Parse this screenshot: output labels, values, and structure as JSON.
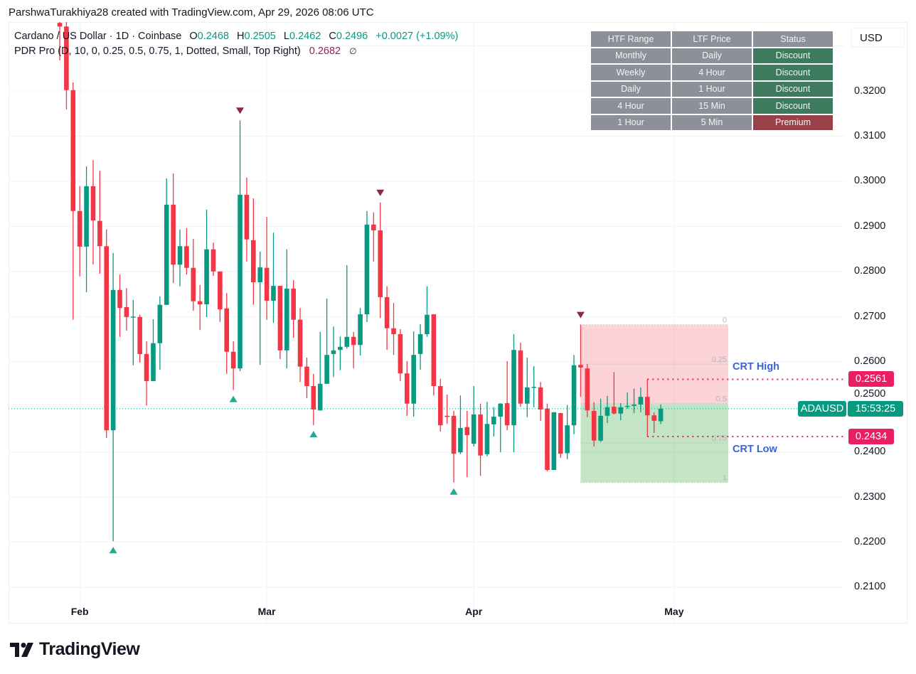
{
  "watermark": "ParshwaTurakhiya28 created with TradingView.com, Apr 29, 2026 08:06 UTC",
  "legend": {
    "symbol": "Cardano / US Dollar · 1D · Coinbase",
    "o_label": "O",
    "o_value": "0.2468",
    "h_label": "H",
    "h_value": "0.2505",
    "l_label": "L",
    "l_value": "0.2462",
    "c_label": "C",
    "c_value": "0.2496",
    "change": "+0.0027 (+1.09%)",
    "indicator": "PDR Pro (D, 10, 0, 0.25, 0.5, 0.75, 1, Dotted, Small, Top Right)",
    "indicator_value": "0.2682",
    "indicator_icon": "∅"
  },
  "currency_button": "USD",
  "table": {
    "headers": [
      "HTF Range",
      "LTF Price",
      "Status"
    ],
    "rows": [
      [
        "Monthly",
        "Daily",
        "Discount"
      ],
      [
        "Weekly",
        "4 Hour",
        "Discount"
      ],
      [
        "Daily",
        "1 Hour",
        "Discount"
      ],
      [
        "4 Hour",
        "15 Min",
        "Discount"
      ],
      [
        "1 Hour",
        "5 Min",
        "Premium"
      ]
    ]
  },
  "price_tags": {
    "crt_high": "0.2561",
    "crt_low": "0.2434",
    "symbol": "ADAUSD",
    "countdown": "15:53:25"
  },
  "crt": {
    "high_label": "CRT High",
    "low_label": "CRT Low"
  },
  "colors": {
    "up": "#089981",
    "down": "#f23645",
    "pivot_high": "#8c2553",
    "pivot_low": "#22ab94",
    "crt": "#e91e63",
    "table_discount": "#3d7a5e",
    "table_premium": "#984148"
  },
  "logo": "TradingView",
  "chart_data": {
    "type": "candlestick",
    "title": "Cardano / US Dollar · 1D · Coinbase",
    "interval": "1D",
    "first_bar_date": "2026-01-29",
    "ylabel": "USD",
    "ylim": [
      0.2021,
      0.3342
    ],
    "y_ticks": [
      "0.3200",
      "0.3100",
      "0.3000",
      "0.2900",
      "0.2800",
      "0.2700",
      "0.2600",
      "0.2500",
      "0.2400",
      "0.2300",
      "0.2200",
      "0.2100"
    ],
    "x_ticks": [
      {
        "label": "Feb",
        "bar": 3
      },
      {
        "label": "Mar",
        "bar": 31
      },
      {
        "label": "Apr",
        "bar": 62
      },
      {
        "label": "May",
        "bar": 92
      }
    ],
    "candles_ohlc": [
      [
        0.3351,
        0.3359,
        0.3268,
        0.3343
      ],
      [
        0.3343,
        0.3355,
        0.3159,
        0.3202
      ],
      [
        0.3202,
        0.3219,
        0.2693,
        0.2934
      ],
      [
        0.2934,
        0.2989,
        0.2789,
        0.2855
      ],
      [
        0.2855,
        0.3033,
        0.2754,
        0.2989
      ],
      [
        0.2989,
        0.3047,
        0.2815,
        0.2913
      ],
      [
        0.2912,
        0.3023,
        0.2795,
        0.2856
      ],
      [
        0.2856,
        0.2893,
        0.2431,
        0.2448
      ],
      [
        0.2448,
        0.2841,
        0.2202,
        0.2759
      ],
      [
        0.2759,
        0.2793,
        0.2655,
        0.2719
      ],
      [
        0.2721,
        0.2763,
        0.2669,
        0.2699
      ],
      [
        0.2699,
        0.2737,
        0.2592,
        0.27
      ],
      [
        0.2699,
        0.2704,
        0.2598,
        0.2617
      ],
      [
        0.2617,
        0.2645,
        0.2503,
        0.2557
      ],
      [
        0.2557,
        0.2694,
        0.2557,
        0.2641
      ],
      [
        0.2641,
        0.2745,
        0.2582,
        0.2726
      ],
      [
        0.2726,
        0.3006,
        0.2726,
        0.2948
      ],
      [
        0.2948,
        0.3017,
        0.2774,
        0.2815
      ],
      [
        0.2815,
        0.2893,
        0.2767,
        0.2856
      ],
      [
        0.2856,
        0.2896,
        0.2793,
        0.2808
      ],
      [
        0.2808,
        0.2872,
        0.2713,
        0.2734
      ],
      [
        0.2734,
        0.277,
        0.267,
        0.2727
      ],
      [
        0.2727,
        0.2937,
        0.2699,
        0.2849
      ],
      [
        0.2849,
        0.2864,
        0.279,
        0.28
      ],
      [
        0.28,
        0.28,
        0.2688,
        0.2716
      ],
      [
        0.2718,
        0.2752,
        0.2573,
        0.2622
      ],
      [
        0.2622,
        0.2645,
        0.2537,
        0.2585
      ],
      [
        0.2585,
        0.3135,
        0.2579,
        0.297
      ],
      [
        0.297,
        0.3008,
        0.2822,
        0.2871
      ],
      [
        0.2869,
        0.2962,
        0.2726,
        0.2776
      ],
      [
        0.2776,
        0.2844,
        0.2593,
        0.2809
      ],
      [
        0.2808,
        0.2921,
        0.2693,
        0.2735
      ],
      [
        0.2735,
        0.2886,
        0.2686,
        0.2768
      ],
      [
        0.2768,
        0.2768,
        0.2606,
        0.2625
      ],
      [
        0.2625,
        0.2849,
        0.2585,
        0.2762
      ],
      [
        0.2762,
        0.2781,
        0.2653,
        0.2693
      ],
      [
        0.2693,
        0.2719,
        0.2555,
        0.2589
      ],
      [
        0.2589,
        0.2609,
        0.2519,
        0.2546
      ],
      [
        0.2546,
        0.2573,
        0.2459,
        0.2494
      ],
      [
        0.2492,
        0.2666,
        0.2492,
        0.2551
      ],
      [
        0.2551,
        0.274,
        0.2551,
        0.2615
      ],
      [
        0.2617,
        0.2678,
        0.2566,
        0.2625
      ],
      [
        0.2626,
        0.2656,
        0.2581,
        0.2633
      ],
      [
        0.2633,
        0.2814,
        0.2629,
        0.2655
      ],
      [
        0.2655,
        0.2666,
        0.2585,
        0.2637
      ],
      [
        0.2637,
        0.2719,
        0.2614,
        0.2705
      ],
      [
        0.2705,
        0.2934,
        0.2688,
        0.2904
      ],
      [
        0.2904,
        0.2931,
        0.2822,
        0.2891
      ],
      [
        0.2891,
        0.2953,
        0.2697,
        0.2743
      ],
      [
        0.2743,
        0.2767,
        0.2626,
        0.2674
      ],
      [
        0.2674,
        0.273,
        0.2615,
        0.2661
      ],
      [
        0.2661,
        0.2672,
        0.2557,
        0.2574
      ],
      [
        0.2574,
        0.2601,
        0.248,
        0.2507
      ],
      [
        0.2507,
        0.2667,
        0.2478,
        0.2615
      ],
      [
        0.2617,
        0.2683,
        0.2582,
        0.2661
      ],
      [
        0.2661,
        0.2767,
        0.2655,
        0.2704
      ],
      [
        0.2705,
        0.2705,
        0.2525,
        0.2546
      ],
      [
        0.2546,
        0.2562,
        0.2445,
        0.2459
      ],
      [
        0.248,
        0.2527,
        0.2462,
        0.2478
      ],
      [
        0.248,
        0.2491,
        0.2332,
        0.2396
      ],
      [
        0.2399,
        0.2525,
        0.2395,
        0.2453
      ],
      [
        0.2455,
        0.2491,
        0.2344,
        0.2437
      ],
      [
        0.2418,
        0.2546,
        0.2412,
        0.2483
      ],
      [
        0.2483,
        0.2507,
        0.2347,
        0.2392
      ],
      [
        0.2395,
        0.2511,
        0.239,
        0.2462
      ],
      [
        0.2461,
        0.2499,
        0.2434,
        0.2478
      ],
      [
        0.2478,
        0.2508,
        0.2399,
        0.2507
      ],
      [
        0.2508,
        0.2601,
        0.2448,
        0.2459
      ],
      [
        0.2459,
        0.2661,
        0.2399,
        0.2626
      ],
      [
        0.2625,
        0.2642,
        0.25,
        0.2507
      ],
      [
        0.2507,
        0.2609,
        0.2477,
        0.2543
      ],
      [
        0.2543,
        0.259,
        0.2499,
        0.2544
      ],
      [
        0.2543,
        0.2555,
        0.2469,
        0.2494
      ],
      [
        0.2496,
        0.2507,
        0.2357,
        0.236
      ],
      [
        0.236,
        0.2488,
        0.236,
        0.2488
      ],
      [
        0.2486,
        0.2486,
        0.2387,
        0.2396
      ],
      [
        0.2397,
        0.2504,
        0.2384,
        0.2459
      ],
      [
        0.2459,
        0.2615,
        0.2439,
        0.2592
      ],
      [
        0.2593,
        0.2682,
        0.2522,
        0.2587
      ],
      [
        0.2585,
        0.2595,
        0.2477,
        0.2492
      ],
      [
        0.2491,
        0.251,
        0.2412,
        0.2425
      ],
      [
        0.2425,
        0.2518,
        0.2422,
        0.248
      ],
      [
        0.248,
        0.2524,
        0.2464,
        0.2499
      ],
      [
        0.25,
        0.2577,
        0.2483,
        0.2485
      ],
      [
        0.2485,
        0.2508,
        0.247,
        0.2499
      ],
      [
        0.25,
        0.2532,
        0.2496,
        0.2502
      ],
      [
        0.2502,
        0.254,
        0.2486,
        0.2505
      ],
      [
        0.2505,
        0.2543,
        0.2488,
        0.2522
      ],
      [
        0.2522,
        0.2561,
        0.2434,
        0.2481
      ],
      [
        0.2481,
        0.2488,
        0.2442,
        0.2469
      ],
      [
        0.2468,
        0.2505,
        0.2462,
        0.2496
      ]
    ],
    "pivot_high_bars": [
      27,
      48,
      78
    ],
    "pivot_low_bars": [
      8,
      26,
      38,
      59
    ],
    "last_price": 0.2496,
    "pdr": {
      "range_high": 0.2682,
      "range_low": 0.2332,
      "start_bar": 78,
      "levels": [
        0,
        0.25,
        0.5,
        0.75,
        1
      ],
      "level_labels": [
        "0",
        "0.25",
        "0.5",
        "0.75",
        "1"
      ]
    },
    "crt_levels": {
      "high": 0.2561,
      "low": 0.2434,
      "start_bar": 88
    }
  }
}
